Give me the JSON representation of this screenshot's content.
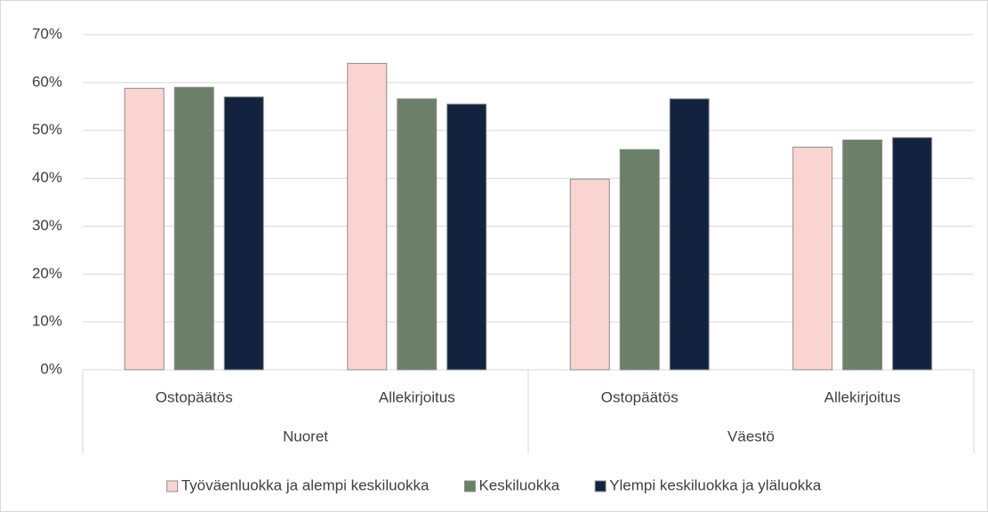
{
  "chart_data": {
    "type": "bar",
    "categories": [
      "Ostopäätös",
      "Allekirjoitus",
      "Ostopäätös",
      "Allekirjoitus"
    ],
    "groups": [
      "Nuoret",
      "Väestö"
    ],
    "series": [
      {
        "name": "Työväenluokka ja alempi keskiluokka",
        "color": "#fad4d0",
        "values": [
          58.8,
          64,
          39.8,
          46.5
        ]
      },
      {
        "name": "Keskiluokka",
        "color": "#6b7f69",
        "values": [
          59,
          56.6,
          46,
          48
        ]
      },
      {
        "name": "Ylempi keskiluokka ja yläluokka",
        "color": "#13233f",
        "values": [
          57,
          55.5,
          56.6,
          48.5
        ]
      }
    ],
    "ylim": [
      0,
      70
    ],
    "yticks": [
      {
        "value": 0,
        "label": "0%"
      },
      {
        "value": 10,
        "label": "10%"
      },
      {
        "value": 20,
        "label": "20%"
      },
      {
        "value": 30,
        "label": "30%"
      },
      {
        "value": 40,
        "label": "40%"
      },
      {
        "value": 50,
        "label": "50%"
      },
      {
        "value": 60,
        "label": "60%"
      },
      {
        "value": 70,
        "label": "70%"
      }
    ],
    "grid": true,
    "legend": "bottom"
  }
}
